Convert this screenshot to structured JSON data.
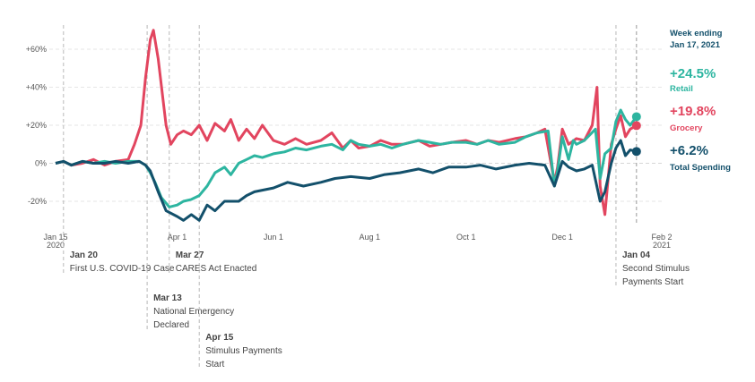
{
  "chart_data": {
    "type": "line",
    "ylim": [
      -30,
      70
    ],
    "y_ticks": [
      {
        "value": 60,
        "label": "+60%"
      },
      {
        "value": 40,
        "label": "+40%"
      },
      {
        "value": 20,
        "label": "+20%"
      },
      {
        "value": 0,
        "label": "0%"
      },
      {
        "value": -20,
        "label": "-20%"
      }
    ],
    "x_ticks": [
      {
        "date": "2020-01-15",
        "label": "Jan 15",
        "label2": "2020"
      },
      {
        "date": "2020-04-01",
        "label": "Apr 1"
      },
      {
        "date": "2020-06-01",
        "label": "Jun 1"
      },
      {
        "date": "2020-08-01",
        "label": "Aug 1"
      },
      {
        "date": "2020-10-01",
        "label": "Oct 1"
      },
      {
        "date": "2020-12-01",
        "label": "Dec 1"
      },
      {
        "date": "2021-02-02",
        "label": "Feb 2",
        "label2": "2021"
      }
    ],
    "grid": true,
    "legend_position": "right",
    "legend_header": [
      "Week ending",
      "Jan 17, 2021"
    ],
    "series": [
      {
        "name": "Retail",
        "value_label": "+24.5%",
        "color": "#2db5a0",
        "final": 24.5,
        "points": [
          [
            "2020-01-15",
            0
          ],
          [
            "2020-01-20",
            1
          ],
          [
            "2020-01-25",
            -1
          ],
          [
            "2020-02-01",
            1
          ],
          [
            "2020-02-08",
            0
          ],
          [
            "2020-02-15",
            1
          ],
          [
            "2020-02-22",
            0
          ],
          [
            "2020-03-01",
            1
          ],
          [
            "2020-03-08",
            1
          ],
          [
            "2020-03-12",
            -1
          ],
          [
            "2020-03-15",
            -5
          ],
          [
            "2020-03-18",
            -10
          ],
          [
            "2020-03-22",
            -18
          ],
          [
            "2020-03-27",
            -23
          ],
          [
            "2020-04-01",
            -22
          ],
          [
            "2020-04-05",
            -20
          ],
          [
            "2020-04-10",
            -19
          ],
          [
            "2020-04-15",
            -17
          ],
          [
            "2020-04-20",
            -12
          ],
          [
            "2020-04-25",
            -5
          ],
          [
            "2020-05-01",
            -2
          ],
          [
            "2020-05-05",
            -6
          ],
          [
            "2020-05-10",
            0
          ],
          [
            "2020-05-15",
            2
          ],
          [
            "2020-05-20",
            4
          ],
          [
            "2020-05-25",
            3
          ],
          [
            "2020-06-01",
            5
          ],
          [
            "2020-06-08",
            6
          ],
          [
            "2020-06-15",
            8
          ],
          [
            "2020-06-22",
            7
          ],
          [
            "2020-07-01",
            9
          ],
          [
            "2020-07-08",
            10
          ],
          [
            "2020-07-15",
            7
          ],
          [
            "2020-07-20",
            12
          ],
          [
            "2020-07-25",
            10
          ],
          [
            "2020-08-01",
            9
          ],
          [
            "2020-08-08",
            10
          ],
          [
            "2020-08-15",
            8
          ],
          [
            "2020-08-22",
            10
          ],
          [
            "2020-09-01",
            12
          ],
          [
            "2020-09-08",
            11
          ],
          [
            "2020-09-15",
            10
          ],
          [
            "2020-09-22",
            11
          ],
          [
            "2020-10-01",
            11
          ],
          [
            "2020-10-08",
            10
          ],
          [
            "2020-10-15",
            12
          ],
          [
            "2020-10-22",
            10
          ],
          [
            "2020-11-01",
            11
          ],
          [
            "2020-11-08",
            14
          ],
          [
            "2020-11-15",
            16
          ],
          [
            "2020-11-22",
            17
          ],
          [
            "2020-11-26",
            -12
          ],
          [
            "2020-11-28",
            -4
          ],
          [
            "2020-12-01",
            14
          ],
          [
            "2020-12-05",
            2
          ],
          [
            "2020-12-08",
            12
          ],
          [
            "2020-12-10",
            10
          ],
          [
            "2020-12-15",
            12
          ],
          [
            "2020-12-22",
            18
          ],
          [
            "2020-12-25",
            -8
          ],
          [
            "2020-12-28",
            5
          ],
          [
            "2021-01-01",
            8
          ],
          [
            "2021-01-04",
            22
          ],
          [
            "2021-01-07",
            28
          ],
          [
            "2021-01-10",
            23
          ],
          [
            "2021-01-13",
            20
          ],
          [
            "2021-01-17",
            24.5
          ]
        ]
      },
      {
        "name": "Grocery",
        "value_label": "+19.8%",
        "color": "#e2455f",
        "final": 19.8,
        "points": [
          [
            "2020-01-15",
            0
          ],
          [
            "2020-01-20",
            1
          ],
          [
            "2020-01-25",
            -1
          ],
          [
            "2020-02-01",
            0
          ],
          [
            "2020-02-08",
            2
          ],
          [
            "2020-02-15",
            -1
          ],
          [
            "2020-02-22",
            1
          ],
          [
            "2020-03-01",
            2
          ],
          [
            "2020-03-05",
            10
          ],
          [
            "2020-03-09",
            20
          ],
          [
            "2020-03-12",
            45
          ],
          [
            "2020-03-15",
            65
          ],
          [
            "2020-03-17",
            70
          ],
          [
            "2020-03-20",
            55
          ],
          [
            "2020-03-25",
            20
          ],
          [
            "2020-03-28",
            10
          ],
          [
            "2020-04-01",
            15
          ],
          [
            "2020-04-05",
            17
          ],
          [
            "2020-04-10",
            15
          ],
          [
            "2020-04-15",
            20
          ],
          [
            "2020-04-20",
            12
          ],
          [
            "2020-04-25",
            21
          ],
          [
            "2020-05-01",
            17
          ],
          [
            "2020-05-05",
            23
          ],
          [
            "2020-05-10",
            12
          ],
          [
            "2020-05-15",
            18
          ],
          [
            "2020-05-20",
            13
          ],
          [
            "2020-05-25",
            20
          ],
          [
            "2020-06-01",
            12
          ],
          [
            "2020-06-08",
            10
          ],
          [
            "2020-06-15",
            13
          ],
          [
            "2020-06-22",
            10
          ],
          [
            "2020-07-01",
            12
          ],
          [
            "2020-07-08",
            16
          ],
          [
            "2020-07-15",
            8
          ],
          [
            "2020-07-20",
            12
          ],
          [
            "2020-07-25",
            8
          ],
          [
            "2020-08-01",
            9
          ],
          [
            "2020-08-08",
            12
          ],
          [
            "2020-08-15",
            10
          ],
          [
            "2020-08-22",
            10
          ],
          [
            "2020-09-01",
            12
          ],
          [
            "2020-09-08",
            9
          ],
          [
            "2020-09-15",
            10
          ],
          [
            "2020-09-22",
            11
          ],
          [
            "2020-10-01",
            12
          ],
          [
            "2020-10-08",
            10
          ],
          [
            "2020-10-15",
            12
          ],
          [
            "2020-10-22",
            11
          ],
          [
            "2020-11-01",
            13
          ],
          [
            "2020-11-08",
            14
          ],
          [
            "2020-11-15",
            16
          ],
          [
            "2020-11-20",
            18
          ],
          [
            "2020-11-26",
            -10
          ],
          [
            "2020-11-28",
            -2
          ],
          [
            "2020-12-01",
            18
          ],
          [
            "2020-12-05",
            10
          ],
          [
            "2020-12-10",
            13
          ],
          [
            "2020-12-15",
            12
          ],
          [
            "2020-12-20",
            20
          ],
          [
            "2020-12-23",
            40
          ],
          [
            "2020-12-25",
            -12
          ],
          [
            "2020-12-28",
            -27
          ],
          [
            "2021-01-01",
            10
          ],
          [
            "2021-01-04",
            18
          ],
          [
            "2021-01-07",
            25
          ],
          [
            "2021-01-10",
            14
          ],
          [
            "2021-01-13",
            18
          ],
          [
            "2021-01-17",
            19.8
          ]
        ]
      },
      {
        "name": "Total Spending",
        "value_label": "+6.2%",
        "color": "#13506b",
        "final": 6.2,
        "points": [
          [
            "2020-01-15",
            0
          ],
          [
            "2020-01-20",
            1
          ],
          [
            "2020-01-25",
            -1
          ],
          [
            "2020-02-01",
            1
          ],
          [
            "2020-02-08",
            0
          ],
          [
            "2020-02-15",
            0
          ],
          [
            "2020-02-22",
            1
          ],
          [
            "2020-03-01",
            0
          ],
          [
            "2020-03-08",
            1
          ],
          [
            "2020-03-12",
            -1
          ],
          [
            "2020-03-15",
            -4
          ],
          [
            "2020-03-20",
            -15
          ],
          [
            "2020-03-25",
            -25
          ],
          [
            "2020-04-01",
            -28
          ],
          [
            "2020-04-05",
            -30
          ],
          [
            "2020-04-10",
            -27
          ],
          [
            "2020-04-15",
            -30
          ],
          [
            "2020-04-20",
            -22
          ],
          [
            "2020-04-25",
            -25
          ],
          [
            "2020-05-01",
            -20
          ],
          [
            "2020-05-10",
            -20
          ],
          [
            "2020-05-15",
            -17
          ],
          [
            "2020-05-20",
            -15
          ],
          [
            "2020-06-01",
            -13
          ],
          [
            "2020-06-10",
            -10
          ],
          [
            "2020-06-20",
            -12
          ],
          [
            "2020-07-01",
            -10
          ],
          [
            "2020-07-10",
            -8
          ],
          [
            "2020-07-20",
            -7
          ],
          [
            "2020-08-01",
            -8
          ],
          [
            "2020-08-10",
            -6
          ],
          [
            "2020-08-20",
            -5
          ],
          [
            "2020-09-01",
            -3
          ],
          [
            "2020-09-10",
            -5
          ],
          [
            "2020-09-20",
            -2
          ],
          [
            "2020-10-01",
            -2
          ],
          [
            "2020-10-10",
            -1
          ],
          [
            "2020-10-20",
            -3
          ],
          [
            "2020-11-01",
            -1
          ],
          [
            "2020-11-10",
            0
          ],
          [
            "2020-11-20",
            -1
          ],
          [
            "2020-11-26",
            -12
          ],
          [
            "2020-12-01",
            1
          ],
          [
            "2020-12-05",
            -2
          ],
          [
            "2020-12-10",
            -4
          ],
          [
            "2020-12-15",
            -3
          ],
          [
            "2020-12-20",
            -1
          ],
          [
            "2020-12-25",
            -20
          ],
          [
            "2020-12-28",
            -15
          ],
          [
            "2021-01-01",
            0
          ],
          [
            "2021-01-04",
            8
          ],
          [
            "2021-01-07",
            12
          ],
          [
            "2021-01-10",
            4
          ],
          [
            "2021-01-13",
            7
          ],
          [
            "2021-01-17",
            6.2
          ]
        ]
      }
    ],
    "events": [
      {
        "date": "2020-01-20",
        "title": "Jan 20",
        "text": [
          "First U.S. COVID-19 Case"
        ]
      },
      {
        "date": "2020-03-13",
        "title": "Mar 13",
        "text": [
          "National Emergency",
          "Declared"
        ]
      },
      {
        "date": "2020-03-27",
        "title": "Mar 27",
        "text": [
          "CARES Act Enacted"
        ]
      },
      {
        "date": "2020-04-15",
        "title": "Apr 15",
        "text": [
          "Stimulus Payments",
          "Start"
        ]
      },
      {
        "date": "2021-01-04",
        "title": "Jan 04",
        "text": [
          "Second Stimulus",
          "Payments Start"
        ]
      }
    ],
    "current_marker_date": "2021-01-17"
  }
}
